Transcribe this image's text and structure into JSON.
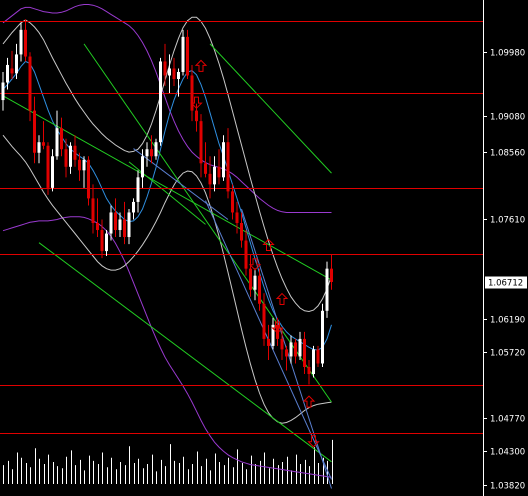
{
  "chart_data": {
    "type": "candlestick",
    "y_axis": {
      "min": 1.0382,
      "max": 1.1044,
      "ticks": [
        "1.09980",
        "1.09080",
        "1.08560",
        "1.07610",
        "1.06190",
        "1.05720",
        "1.04770",
        "1.04300",
        "1.03820"
      ]
    },
    "levels": [
      {
        "value": "1.10431",
        "color": "#e00000"
      },
      {
        "value": "1.09404",
        "color": "#e00000"
      },
      {
        "value": "1.08046",
        "color": "#e00000"
      },
      {
        "value": "1.07108",
        "color": "#e00000"
      },
      {
        "value": "1.05248",
        "color": "#e00000"
      },
      {
        "value": "1.04562",
        "color": "#e00000"
      }
    ],
    "current_price": {
      "value": "1.06712",
      "color": "#ffffff"
    },
    "colors": {
      "background": "#000000",
      "up_candle": "#ffffff",
      "down_candle": "#e00000",
      "bollinger": "#c8c8c8",
      "envelope": "#9a3ad0",
      "moving_average": "#2f8fe0",
      "channel_green": "#22cc22",
      "channel_blue": "#5a7fd0",
      "arrows": "#e00000",
      "volume": "#ffffff",
      "axis_panel": "#000000"
    },
    "candles": [
      [
        1.093,
        1.097,
        1.0915,
        1.0955
      ],
      [
        1.0955,
        1.099,
        1.0945,
        1.098
      ],
      [
        1.0975,
        1.1,
        1.096,
        1.0968
      ],
      [
        1.0968,
        1.101,
        1.096,
        1.0995
      ],
      [
        1.0995,
        1.104,
        1.0985,
        1.103
      ],
      [
        1.103,
        1.1045,
        1.0985,
        1.0992
      ],
      [
        1.0992,
        1.0998,
        1.09,
        1.0915
      ],
      [
        1.0915,
        1.0935,
        1.084,
        1.0855
      ],
      [
        1.0855,
        1.088,
        1.084,
        1.087
      ],
      [
        1.087,
        1.09,
        1.086,
        1.0865
      ],
      [
        1.0865,
        1.087,
        1.0795,
        1.0805
      ],
      [
        1.0805,
        1.086,
        1.08,
        1.085
      ],
      [
        1.085,
        1.0915,
        1.0845,
        1.089
      ],
      [
        1.089,
        1.0905,
        1.085,
        1.086
      ],
      [
        1.086,
        1.0875,
        1.082,
        1.0835
      ],
      [
        1.0835,
        1.087,
        1.0825,
        1.0865
      ],
      [
        1.0865,
        1.088,
        1.0835,
        1.0845
      ],
      [
        1.0845,
        1.0855,
        1.0815,
        1.083
      ],
      [
        1.083,
        1.085,
        1.0805,
        1.0845
      ],
      [
        1.0845,
        1.085,
        1.078,
        1.079
      ],
      [
        1.079,
        1.081,
        1.074,
        1.0755
      ],
      [
        1.0755,
        1.079,
        1.0735,
        1.0745
      ],
      [
        1.0745,
        1.076,
        1.0705,
        1.0715
      ],
      [
        1.0715,
        1.0745,
        1.0708,
        1.074
      ],
      [
        1.074,
        1.078,
        1.073,
        1.077
      ],
      [
        1.077,
        1.079,
        1.0735,
        1.0745
      ],
      [
        1.0745,
        1.077,
        1.0735,
        1.076
      ],
      [
        1.076,
        1.0785,
        1.0725,
        1.0735
      ],
      [
        1.0735,
        1.0775,
        1.0725,
        1.077
      ],
      [
        1.077,
        1.079,
        1.076,
        1.0785
      ],
      [
        1.0785,
        1.083,
        1.077,
        1.082
      ],
      [
        1.082,
        1.086,
        1.0805,
        1.085
      ],
      [
        1.085,
        1.087,
        1.0835,
        1.086
      ],
      [
        1.086,
        1.088,
        1.084,
        1.085
      ],
      [
        1.085,
        1.0875,
        1.0845,
        1.087
      ],
      [
        1.087,
        1.099,
        1.0865,
        1.0985
      ],
      [
        1.0985,
        1.101,
        1.095,
        1.0965
      ],
      [
        1.0965,
        1.0995,
        1.094,
        1.0975
      ],
      [
        1.0975,
        1.099,
        1.095,
        1.096
      ],
      [
        1.096,
        1.0975,
        1.0935,
        1.097
      ],
      [
        1.097,
        1.103,
        1.0965,
        1.102
      ],
      [
        1.102,
        1.103,
        1.096,
        1.0965
      ],
      [
        1.0965,
        1.098,
        1.09,
        1.0915
      ],
      [
        1.0915,
        1.0925,
        1.0885,
        1.09
      ],
      [
        1.09,
        1.091,
        1.082,
        1.084
      ],
      [
        1.084,
        1.087,
        1.082,
        1.0825
      ],
      [
        1.0825,
        1.085,
        1.079,
        1.081
      ],
      [
        1.081,
        1.085,
        1.08,
        1.0835
      ],
      [
        1.0835,
        1.086,
        1.081,
        1.082
      ],
      [
        1.082,
        1.088,
        1.0815,
        1.087
      ],
      [
        1.087,
        1.089,
        1.079,
        1.08
      ],
      [
        1.08,
        1.081,
        1.076,
        1.077
      ],
      [
        1.077,
        1.0785,
        1.074,
        1.0755
      ],
      [
        1.0755,
        1.077,
        1.072,
        1.073
      ],
      [
        1.073,
        1.0745,
        1.068,
        1.069
      ],
      [
        1.069,
        1.071,
        1.065,
        1.066
      ],
      [
        1.066,
        1.069,
        1.0645,
        1.068
      ],
      [
        1.068,
        1.069,
        1.063,
        1.064
      ],
      [
        1.064,
        1.0655,
        1.058,
        1.059
      ],
      [
        1.059,
        1.061,
        1.056,
        1.058
      ],
      [
        1.058,
        1.062,
        1.0575,
        1.061
      ],
      [
        1.061,
        1.062,
        1.058,
        1.059
      ],
      [
        1.059,
        1.0605,
        1.056,
        1.0575
      ],
      [
        1.0575,
        1.058,
        1.0545,
        1.0565
      ],
      [
        1.0565,
        1.0595,
        1.0555,
        1.0585
      ],
      [
        1.0585,
        1.059,
        1.0555,
        1.0565
      ],
      [
        1.0565,
        1.06,
        1.056,
        1.059
      ],
      [
        1.059,
        1.06,
        1.054,
        1.055
      ],
      [
        1.055,
        1.056,
        1.0525,
        1.054
      ],
      [
        1.054,
        1.058,
        1.0535,
        1.0575
      ],
      [
        1.0575,
        1.058,
        1.055,
        1.0555
      ],
      [
        1.0555,
        1.064,
        1.055,
        1.063
      ],
      [
        1.063,
        1.07,
        1.062,
        1.069
      ],
      [
        1.069,
        1.071,
        1.066,
        1.0671
      ]
    ],
    "volume": [
      18,
      22,
      14,
      30,
      25,
      20,
      16,
      34,
      24,
      19,
      28,
      21,
      17,
      15,
      26,
      32,
      18,
      23,
      13,
      27,
      22,
      19,
      30,
      16,
      25,
      14,
      21,
      18,
      36,
      20,
      24,
      15,
      19,
      28,
      12,
      23,
      17,
      38,
      22,
      20,
      26,
      14,
      19,
      31,
      17,
      24,
      13,
      29,
      21,
      18,
      25,
      16,
      33,
      20,
      14,
      27,
      19,
      22,
      30,
      15,
      24,
      18,
      21,
      26,
      13,
      28,
      19,
      23,
      17,
      35,
      20,
      25,
      22,
      42
    ],
    "bollinger_upper": [
      1.101,
      1.1018,
      1.1026,
      1.1033,
      1.104,
      1.1044,
      1.104,
      1.1034,
      1.1026,
      1.1016,
      1.1003,
      1.099,
      1.0978,
      1.0966,
      1.0954,
      1.0943,
      1.0932,
      1.0922,
      1.0913,
      1.0904,
      1.0896,
      1.0889,
      1.0882,
      1.0876,
      1.0871,
      1.0866,
      1.0862,
      1.0858,
      1.0856,
      1.0857,
      1.086,
      1.0868,
      1.088,
      1.0896,
      1.0915,
      1.0936,
      1.0958,
      1.098,
      1.1,
      1.1018,
      1.1033,
      1.1043,
      1.1048,
      1.1048,
      1.1042,
      1.1032,
      1.1018,
      1.1001,
      1.0982,
      1.0961,
      1.0938,
      1.0914,
      1.089,
      1.0866,
      1.0842,
      1.0818,
      1.0795,
      1.0772,
      1.075,
      1.0729,
      1.071,
      1.0692,
      1.0676,
      1.0662,
      1.065,
      1.0641,
      1.0634,
      1.063,
      1.0629,
      1.0631,
      1.0637,
      1.0647,
      1.0661,
      1.068
    ],
    "bollinger_lower": [
      1.088,
      1.0872,
      1.0864,
      1.0857,
      1.085,
      1.0842,
      1.0832,
      1.0821,
      1.081,
      1.0799,
      1.0789,
      1.078,
      1.0772,
      1.0764,
      1.0756,
      1.0748,
      1.074,
      1.0732,
      1.0724,
      1.0716,
      1.0708,
      1.07,
      1.0694,
      1.069,
      1.0688,
      1.0688,
      1.069,
      1.0694,
      1.07,
      1.0707,
      1.0715,
      1.0724,
      1.0734,
      1.0745,
      1.0757,
      1.077,
      1.0784,
      1.0797,
      1.0809,
      1.0819,
      1.0826,
      1.0829,
      1.0828,
      1.0822,
      1.0812,
      1.0798,
      1.078,
      1.0759,
      1.0736,
      1.0711,
      1.0685,
      1.0658,
      1.0631,
      1.0604,
      1.0578,
      1.0554,
      1.0532,
      1.0513,
      1.0497,
      1.0485,
      1.0477,
      1.0472,
      1.047,
      1.0471,
      1.0474,
      1.0478,
      1.0483,
      1.0488,
      1.0492,
      1.0495,
      1.0497,
      1.0498,
      1.0499,
      1.05
    ],
    "envelope_upper": [
      1.104,
      1.1045,
      1.105,
      1.1055,
      1.106,
      1.1062,
      1.1062,
      1.106,
      1.1058,
      1.1056,
      1.1055,
      1.1054,
      1.1054,
      1.1055,
      1.1057,
      1.106,
      1.1063,
      1.1065,
      1.1066,
      1.1066,
      1.1065,
      1.1063,
      1.106,
      1.1056,
      1.1052,
      1.1048,
      1.1044,
      1.104,
      1.1036,
      1.103,
      1.1022,
      1.1012,
      1.1,
      1.0986,
      1.097,
      1.0952,
      1.0934,
      1.0916,
      1.09,
      1.0886,
      1.0874,
      1.0864,
      1.0856,
      1.085,
      1.0845,
      1.0841,
      1.0838,
      1.0836,
      1.0834,
      1.0832,
      1.0829,
      1.0825,
      1.082,
      1.0814,
      1.0808,
      1.0802,
      1.0796,
      1.079,
      1.0785,
      1.078,
      1.0776,
      1.0773,
      1.0771,
      1.077,
      1.077,
      1.077,
      1.077,
      1.077,
      1.077,
      1.077,
      1.077,
      1.077,
      1.077,
      1.077
    ],
    "envelope_lower": [
      1.0744,
      1.0746,
      1.0748,
      1.075,
      1.0752,
      1.0754,
      1.0756,
      1.0757,
      1.0758,
      1.0758,
      1.0758,
      1.0759,
      1.076,
      1.0762,
      1.0763,
      1.0764,
      1.0764,
      1.0764,
      1.0763,
      1.0761,
      1.0758,
      1.0755,
      1.075,
      1.0744,
      1.0736,
      1.0726,
      1.0714,
      1.0701,
      1.0686,
      1.067,
      1.0654,
      1.0638,
      1.0622,
      1.0606,
      1.0591,
      1.0577,
      1.0564,
      1.0553,
      1.0543,
      1.0533,
      1.0523,
      1.0512,
      1.05,
      1.0487,
      1.0474,
      1.0462,
      1.0452,
      1.0443,
      1.0436,
      1.043,
      1.0425,
      1.0421,
      1.0418,
      1.0415,
      1.0413,
      1.0411,
      1.041,
      1.0409,
      1.0408,
      1.0407,
      1.0406,
      1.0405,
      1.0404,
      1.0403,
      1.0402,
      1.0401,
      1.04,
      1.0399,
      1.0398,
      1.0397,
      1.0396,
      1.0395,
      1.0394,
      1.0393
    ],
    "moving_average": [
      1.0945,
      1.0952,
      1.096,
      1.0968,
      1.0978,
      1.0985,
      1.0982,
      1.097,
      1.0952,
      1.0934,
      1.0916,
      1.09,
      1.0888,
      1.0878,
      1.0868,
      1.086,
      1.0855,
      1.085,
      1.0846,
      1.084,
      1.083,
      1.0818,
      1.0804,
      1.079,
      1.078,
      1.0772,
      1.0766,
      1.076,
      1.0757,
      1.0758,
      1.0764,
      1.0775,
      1.0792,
      1.0812,
      1.0834,
      1.086,
      1.0886,
      1.091,
      1.093,
      1.0946,
      1.096,
      1.097,
      1.0972,
      1.0966,
      1.0952,
      1.0934,
      1.0912,
      1.089,
      1.0868,
      1.085,
      1.083,
      1.081,
      1.079,
      1.077,
      1.0748,
      1.0726,
      1.0704,
      1.0684,
      1.0664,
      1.0646,
      1.063,
      1.0618,
      1.0608,
      1.06,
      1.0594,
      1.059,
      1.0586,
      1.0582,
      1.0578,
      1.0575,
      1.0574,
      1.0578,
      1.059,
      1.061
    ],
    "channels": [
      {
        "color": "#22cc22",
        "points": [
          [
            18,
            1.101
          ],
          [
            73,
            1.05
          ]
        ]
      },
      {
        "color": "#22cc22",
        "points": [
          [
            46,
            1.101
          ],
          [
            73,
            1.0826
          ]
        ]
      },
      {
        "color": "#22cc22",
        "points": [
          [
            0,
            1.0936
          ],
          [
            73,
            1.0674
          ]
        ]
      },
      {
        "color": "#22cc22",
        "points": [
          [
            8,
            1.0727
          ],
          [
            73,
            1.0415
          ]
        ]
      },
      {
        "color": "#22cc22",
        "points": [
          [
            28,
            1.0842
          ],
          [
            45,
            1.0753
          ]
        ]
      },
      {
        "color": "#5a7fd0",
        "points": [
          [
            45,
            1.0787
          ],
          [
            73,
            1.039
          ]
        ]
      },
      {
        "color": "#5a7fd0",
        "points": [
          [
            53,
            1.0775
          ],
          [
            73,
            1.0377
          ]
        ]
      },
      {
        "color": "#5a7fd0",
        "points": [
          [
            29,
            1.0861
          ],
          [
            50,
            1.076
          ]
        ]
      }
    ],
    "arrows": [
      {
        "dir": "up",
        "bar": 44,
        "price": 1.0978
      },
      {
        "dir": "down",
        "bar": 43,
        "price": 1.0927
      },
      {
        "dir": "up",
        "bar": 59,
        "price": 1.0723
      },
      {
        "dir": "down",
        "bar": 56,
        "price": 1.0697
      },
      {
        "dir": "up",
        "bar": 62,
        "price": 1.0646
      },
      {
        "dir": "down",
        "bar": 61,
        "price": 1.0607
      },
      {
        "dir": "up",
        "bar": 68,
        "price": 1.05
      },
      {
        "dir": "down",
        "bar": 69,
        "price": 1.0445
      }
    ]
  }
}
